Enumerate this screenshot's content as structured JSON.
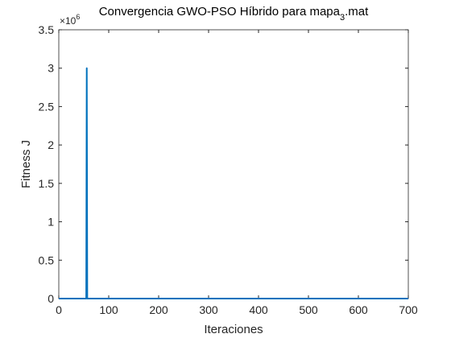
{
  "chart_data": {
    "type": "line",
    "title": [
      "Convergencia GWO-PSO Híbrido para mapa",
      "3",
      ".mat"
    ],
    "y_exponent": [
      "×10",
      "6"
    ],
    "xlabel": "Iteraciones",
    "ylabel": "Fitness J",
    "x": [
      0,
      55,
      56,
      57,
      700
    ],
    "values": [
      0,
      0,
      3,
      0,
      0
    ],
    "color": "#0072bd",
    "xlim": [
      0,
      700
    ],
    "xticks": [
      0,
      100,
      200,
      300,
      400,
      500,
      600,
      700
    ],
    "ylim": [
      0,
      3.5
    ],
    "yticks": [
      0,
      0.5,
      1,
      1.5,
      2,
      2.5,
      3,
      3.5
    ],
    "grid": false
  }
}
